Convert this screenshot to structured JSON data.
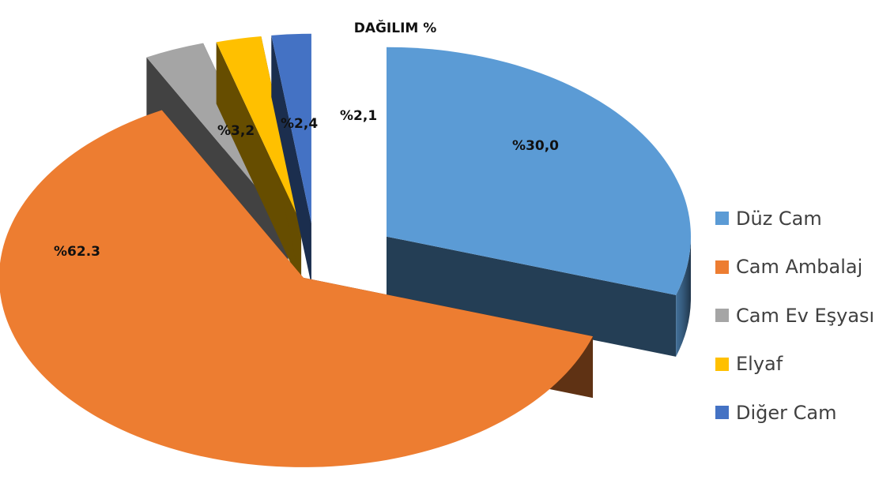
{
  "chart_data": {
    "type": "pie",
    "title": "DAĞILIM %",
    "slices": [
      {
        "name": "Düz Cam",
        "value": 30.0,
        "label": "%30,0",
        "color": "#5B9BD5"
      },
      {
        "name": "Cam Ambalaj",
        "value": 62.3,
        "label": "%62.3",
        "color": "#ED7D31"
      },
      {
        "name": "Cam Ev Eşyası",
        "value": 3.2,
        "label": "%3,2",
        "color": "#A5A5A5"
      },
      {
        "name": "Elyaf",
        "value": 2.4,
        "label": "%2,4",
        "color": "#FFC000"
      },
      {
        "name": "Diğer Cam",
        "value": 2.1,
        "label": "%2,1",
        "color": "#4472C4"
      }
    ],
    "legend_position": "right",
    "exploded": true,
    "three_d": true
  }
}
